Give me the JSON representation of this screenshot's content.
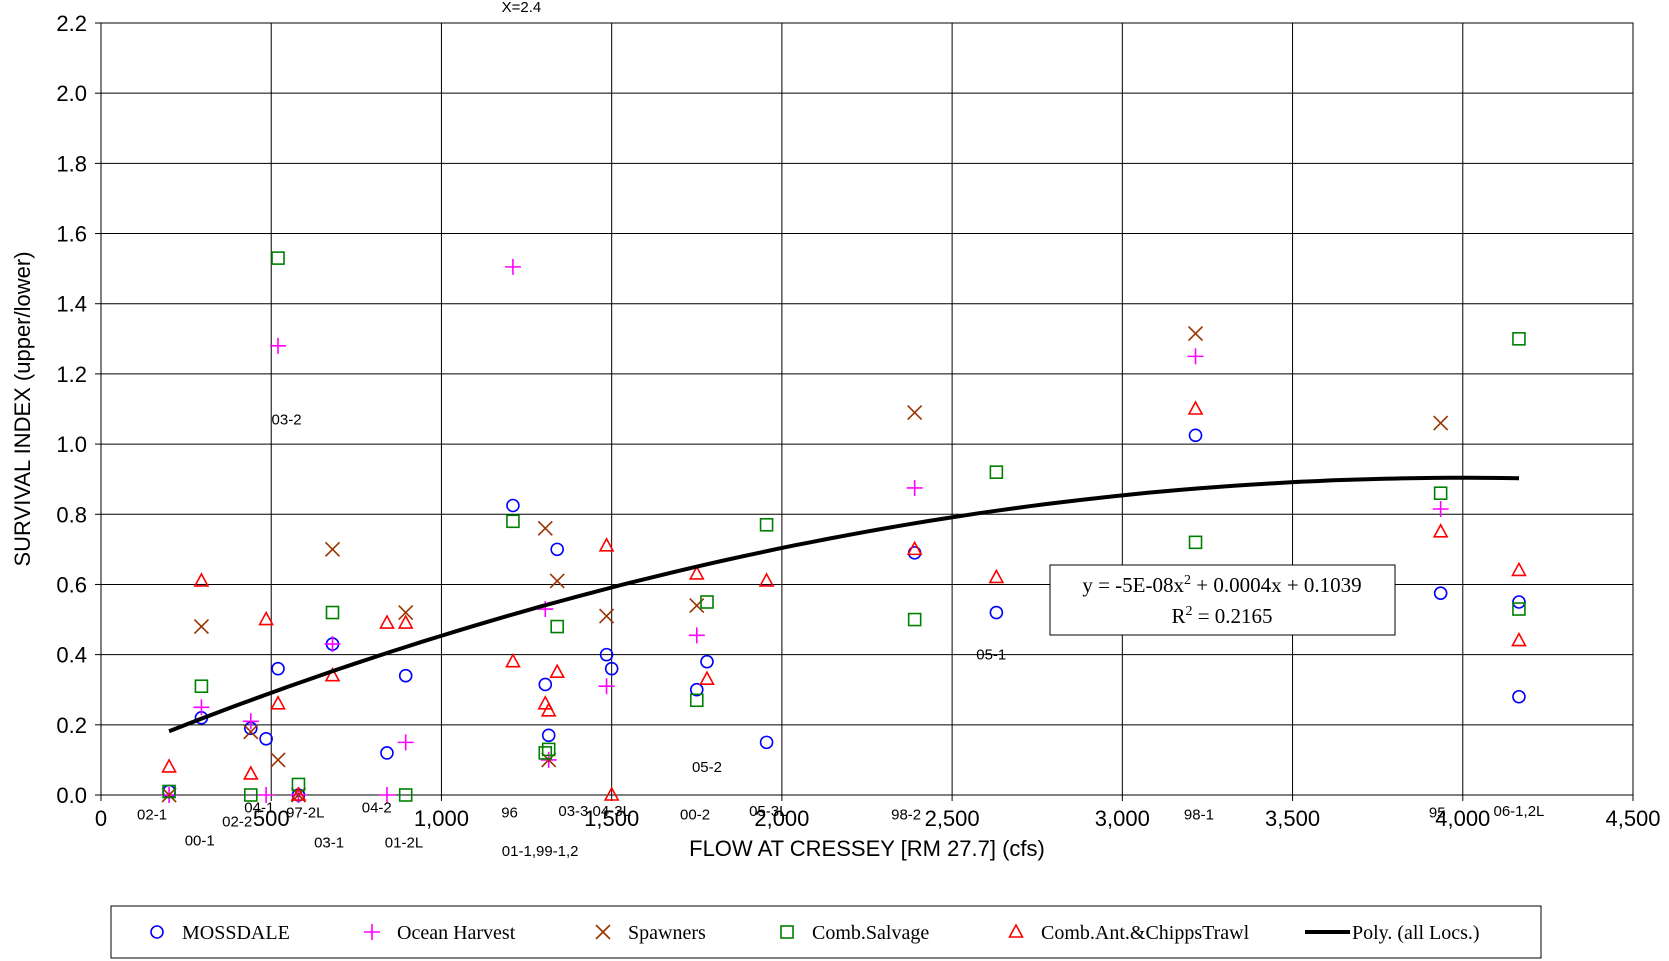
{
  "chart_data": {
    "type": "scatter",
    "title": "",
    "xlabel": "FLOW AT CRESSEY [RM 27.7] (cfs)",
    "ylabel": "SURVIVAL INDEX (upper/lower)",
    "xlim": [
      0,
      4500
    ],
    "ylim": [
      0,
      2.2
    ],
    "xticks": [
      0,
      500,
      1000,
      1500,
      2000,
      2500,
      3000,
      3500,
      4000,
      4500
    ],
    "xtick_labels": [
      "0",
      "500",
      "1,000",
      "1,500",
      "2,000",
      "2,500",
      "3,000",
      "3,500",
      "4,000",
      "4,500"
    ],
    "yticks": [
      0,
      0.2,
      0.4,
      0.6,
      0.8,
      1.0,
      1.2,
      1.4,
      1.6,
      1.8,
      2.0,
      2.2
    ],
    "ytick_labels": [
      "0.0",
      "0.2",
      "0.4",
      "0.6",
      "0.8",
      "1.0",
      "1.2",
      "1.4",
      "1.6",
      "1.8",
      "2.0",
      "2.2"
    ],
    "grid": true,
    "legend_position": "bottom",
    "series": [
      {
        "name": "MOSSDALE",
        "marker": "circle",
        "color": "#0000FF",
        "points": [
          [
            200,
            0.01
          ],
          [
            295,
            0.22
          ],
          [
            440,
            0.19
          ],
          [
            485,
            0.16
          ],
          [
            520,
            0.36
          ],
          [
            580,
            0.0
          ],
          [
            680,
            0.43
          ],
          [
            840,
            0.12
          ],
          [
            895,
            0.34
          ],
          [
            1210,
            0.825
          ],
          [
            1305,
            0.315
          ],
          [
            1315,
            0.17
          ],
          [
            1340,
            0.7
          ],
          [
            1485,
            0.4
          ],
          [
            1500,
            0.36
          ],
          [
            1750,
            0.3
          ],
          [
            1780,
            0.38
          ],
          [
            1955,
            0.15
          ],
          [
            2390,
            0.69
          ],
          [
            2630,
            0.52
          ],
          [
            3215,
            1.025
          ],
          [
            3935,
            0.575
          ],
          [
            4165,
            0.55
          ],
          [
            4165,
            0.28
          ]
        ]
      },
      {
        "name": "Ocean Harvest",
        "marker": "plus",
        "color": "#FF00FF",
        "points": [
          [
            200,
            0.0
          ],
          [
            295,
            0.25
          ],
          [
            440,
            0.21
          ],
          [
            485,
            0.0
          ],
          [
            520,
            1.28
          ],
          [
            580,
            0.0
          ],
          [
            680,
            0.43
          ],
          [
            840,
            0.0
          ],
          [
            895,
            0.15
          ],
          [
            1210,
            1.505
          ],
          [
            1305,
            0.53
          ],
          [
            1315,
            0.1
          ],
          [
            1485,
            0.31
          ],
          [
            1750,
            0.455
          ],
          [
            2390,
            0.875
          ],
          [
            3215,
            1.25
          ],
          [
            3935,
            0.815
          ]
        ]
      },
      {
        "name": "Spawners",
        "marker": "x",
        "color": "#993300",
        "points": [
          [
            200,
            0.0
          ],
          [
            295,
            0.48
          ],
          [
            440,
            0.18
          ],
          [
            520,
            0.1
          ],
          [
            580,
            0.0
          ],
          [
            680,
            0.7
          ],
          [
            895,
            0.52
          ],
          [
            1305,
            0.76
          ],
          [
            1315,
            0.1
          ],
          [
            1340,
            0.61
          ],
          [
            1485,
            0.51
          ],
          [
            1750,
            0.54
          ],
          [
            2390,
            1.09
          ],
          [
            3215,
            1.315
          ],
          [
            3935,
            1.06
          ]
        ]
      },
      {
        "name": "Comb.Salvage",
        "marker": "square",
        "color": "#008000",
        "points": [
          [
            200,
            0.01
          ],
          [
            295,
            0.31
          ],
          [
            440,
            0.0
          ],
          [
            520,
            1.53
          ],
          [
            580,
            0.03
          ],
          [
            680,
            0.52
          ],
          [
            895,
            0.0
          ],
          [
            1210,
            0.78
          ],
          [
            1305,
            0.12
          ],
          [
            1315,
            0.13
          ],
          [
            1340,
            0.48
          ],
          [
            1750,
            0.27
          ],
          [
            1780,
            0.55
          ],
          [
            1955,
            0.77
          ],
          [
            2390,
            0.5
          ],
          [
            2630,
            0.92
          ],
          [
            3215,
            0.72
          ],
          [
            3935,
            0.86
          ],
          [
            4165,
            1.3
          ],
          [
            4165,
            0.53
          ]
        ]
      },
      {
        "name": "Comb.Ant.&ChippsTrawl",
        "marker": "triangle",
        "color": "#FF0000",
        "points": [
          [
            200,
            0.08
          ],
          [
            295,
            0.61
          ],
          [
            440,
            0.06
          ],
          [
            485,
            0.5
          ],
          [
            520,
            0.26
          ],
          [
            580,
            0.0
          ],
          [
            680,
            0.34
          ],
          [
            840,
            0.49
          ],
          [
            895,
            0.49
          ],
          [
            1210,
            0.38
          ],
          [
            1305,
            0.26
          ],
          [
            1315,
            0.24
          ],
          [
            1340,
            0.35
          ],
          [
            1485,
            0.71
          ],
          [
            1500,
            0.0
          ],
          [
            1750,
            0.63
          ],
          [
            1780,
            0.33
          ],
          [
            1955,
            0.61
          ],
          [
            2390,
            0.7
          ],
          [
            2630,
            0.62
          ],
          [
            3215,
            1.1
          ],
          [
            3935,
            0.75
          ],
          [
            4165,
            0.64
          ],
          [
            4165,
            0.44
          ]
        ]
      }
    ],
    "trendline": {
      "name": "Poly. (all Locs.)",
      "color": "#000000",
      "coefficients": {
        "a": -5e-08,
        "b": 0.0004,
        "c": 0.1039
      },
      "x_range": [
        200,
        4165
      ]
    },
    "equation_box": {
      "line1_pre": "y = -5E-08x",
      "line1_sup": "2",
      "line1_post": " + 0.0004x + 0.1039",
      "line2_pre": "R",
      "line2_sup": "2",
      "line2_post": " = 0.2165"
    },
    "annotations": [
      {
        "text": "X=2.4",
        "x": 1235,
        "y": 2.245
      },
      {
        "text": "03-2",
        "x": 545,
        "y": 1.07
      },
      {
        "text": "02-1",
        "x": 150,
        "y": -0.055
      },
      {
        "text": "00-1",
        "x": 290,
        "y": -0.13
      },
      {
        "text": "02-2",
        "x": 400,
        "y": -0.075
      },
      {
        "text": "04-1",
        "x": 465,
        "y": -0.035
      },
      {
        "text": "97-2L",
        "x": 600,
        "y": -0.05
      },
      {
        "text": "03-1",
        "x": 670,
        "y": -0.135
      },
      {
        "text": "04-2",
        "x": 810,
        "y": -0.035
      },
      {
        "text": "01-2L",
        "x": 890,
        "y": -0.135
      },
      {
        "text": "96",
        "x": 1200,
        "y": -0.05
      },
      {
        "text": "01-1,99-1,2",
        "x": 1290,
        "y": -0.16
      },
      {
        "text": "03-3,04-3L",
        "x": 1450,
        "y": -0.045
      },
      {
        "text": "00-2",
        "x": 1745,
        "y": -0.055
      },
      {
        "text": "05-3L",
        "x": 1960,
        "y": -0.045
      },
      {
        "text": "05-2",
        "x": 1780,
        "y": 0.08
      },
      {
        "text": "98-2",
        "x": 2365,
        "y": -0.055
      },
      {
        "text": "05-1",
        "x": 2615,
        "y": 0.4
      },
      {
        "text": "98-1",
        "x": 3225,
        "y": -0.055
      },
      {
        "text": "95",
        "x": 3925,
        "y": -0.05
      },
      {
        "text": "06-1,2L",
        "x": 4165,
        "y": -0.045
      }
    ]
  }
}
